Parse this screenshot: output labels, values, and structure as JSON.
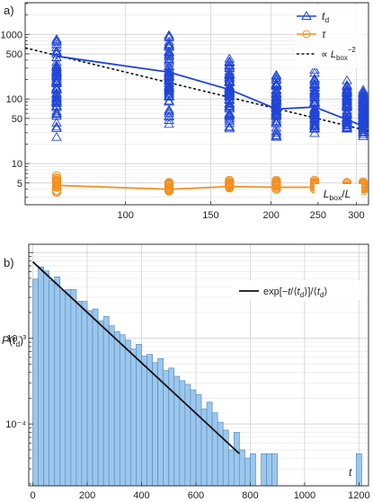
{
  "chart_data": [
    {
      "panel_label": "a)",
      "type": "scatter",
      "xscale": "log",
      "yscale": "log",
      "xlim": [
        62,
        318
      ],
      "ylim": [
        2.3,
        3100
      ],
      "xticks": [
        100,
        150,
        200,
        250,
        300
      ],
      "yticks_major": [
        5,
        10,
        50,
        100,
        500,
        1000
      ],
      "xlabel": "L_box/L",
      "legend": {
        "position": "top-right",
        "entries": [
          {
            "label": "t_d",
            "color": "#2046d8",
            "marker": "triangle"
          },
          {
            "label": "τ",
            "color": "#f39020",
            "marker": "circle"
          },
          {
            "label": "∝ L_box^-2",
            "color": "#111111",
            "style": "dashed"
          }
        ]
      },
      "x_groups": [
        72,
        123,
        164,
        205,
        246,
        287,
        310
      ],
      "td_mean": [
        460,
        260,
        140,
        70,
        75,
        48,
        38
      ],
      "td_spread": [
        [
          22,
          1200
        ],
        [
          40,
          1000
        ],
        [
          30,
          550
        ],
        [
          20,
          330
        ],
        [
          22,
          310
        ],
        [
          28,
          230
        ],
        [
          25,
          170
        ]
      ],
      "tau_mean": [
        4.6,
        4.0,
        4.4,
        4.3,
        4.3,
        4.2,
        4.3
      ],
      "tau_spread": [
        [
          3.2,
          7.2
        ],
        [
          3.4,
          5.6
        ],
        [
          3.7,
          5.8
        ],
        [
          3.7,
          5.8
        ],
        [
          3.7,
          6.0
        ],
        [
          3.7,
          5.2
        ],
        [
          3.6,
          5.6
        ]
      ],
      "fit_line": {
        "x": [
          62,
          318
        ],
        "y": [
          620,
          32
        ]
      }
    },
    {
      "panel_label": "b)",
      "type": "bar",
      "yscale": "log",
      "xlim": [
        -15,
        1235
      ],
      "ylim": [
        1.9e-05,
        0.0125
      ],
      "xticks": [
        0,
        200,
        400,
        600,
        800,
        1000,
        1200
      ],
      "ytick_labels": [
        "10⁻³",
        "10⁻⁴"
      ],
      "xlabel": "t",
      "ylabel": "P(t_d)",
      "bin_width": 20,
      "bin_start": 0,
      "values": [
        0.0049,
        0.0068,
        0.0061,
        0.0047,
        0.0052,
        0.0036,
        0.0037,
        0.0037,
        0.0027,
        0.0027,
        0.0021,
        0.0022,
        0.0016,
        0.0018,
        0.0014,
        0.0012,
        0.0011,
        0.00095,
        0.00075,
        0.00085,
        0.00062,
        0.00065,
        0.00052,
        0.00058,
        0.00042,
        0.00045,
        0.00036,
        0.00032,
        0.00029,
        0.00025,
        0.00022,
        0.00015,
        0.00018,
        0.000135,
        0.000105,
        8.5e-05,
        5e-05,
        8e-05,
        5e-05,
        4e-05,
        4.5e-05,
        0,
        4.5e-05,
        4.5e-05,
        4.5e-05
      ],
      "outlier_bins": [
        {
          "x": 1200,
          "value": 4.5e-05
        }
      ],
      "fit": {
        "label": "exp[-t/⟨t_d⟩]/⟨t_d⟩",
        "x": [
          0,
          760
        ],
        "y": [
          0.0078,
          4.5e-05
        ]
      }
    }
  ]
}
